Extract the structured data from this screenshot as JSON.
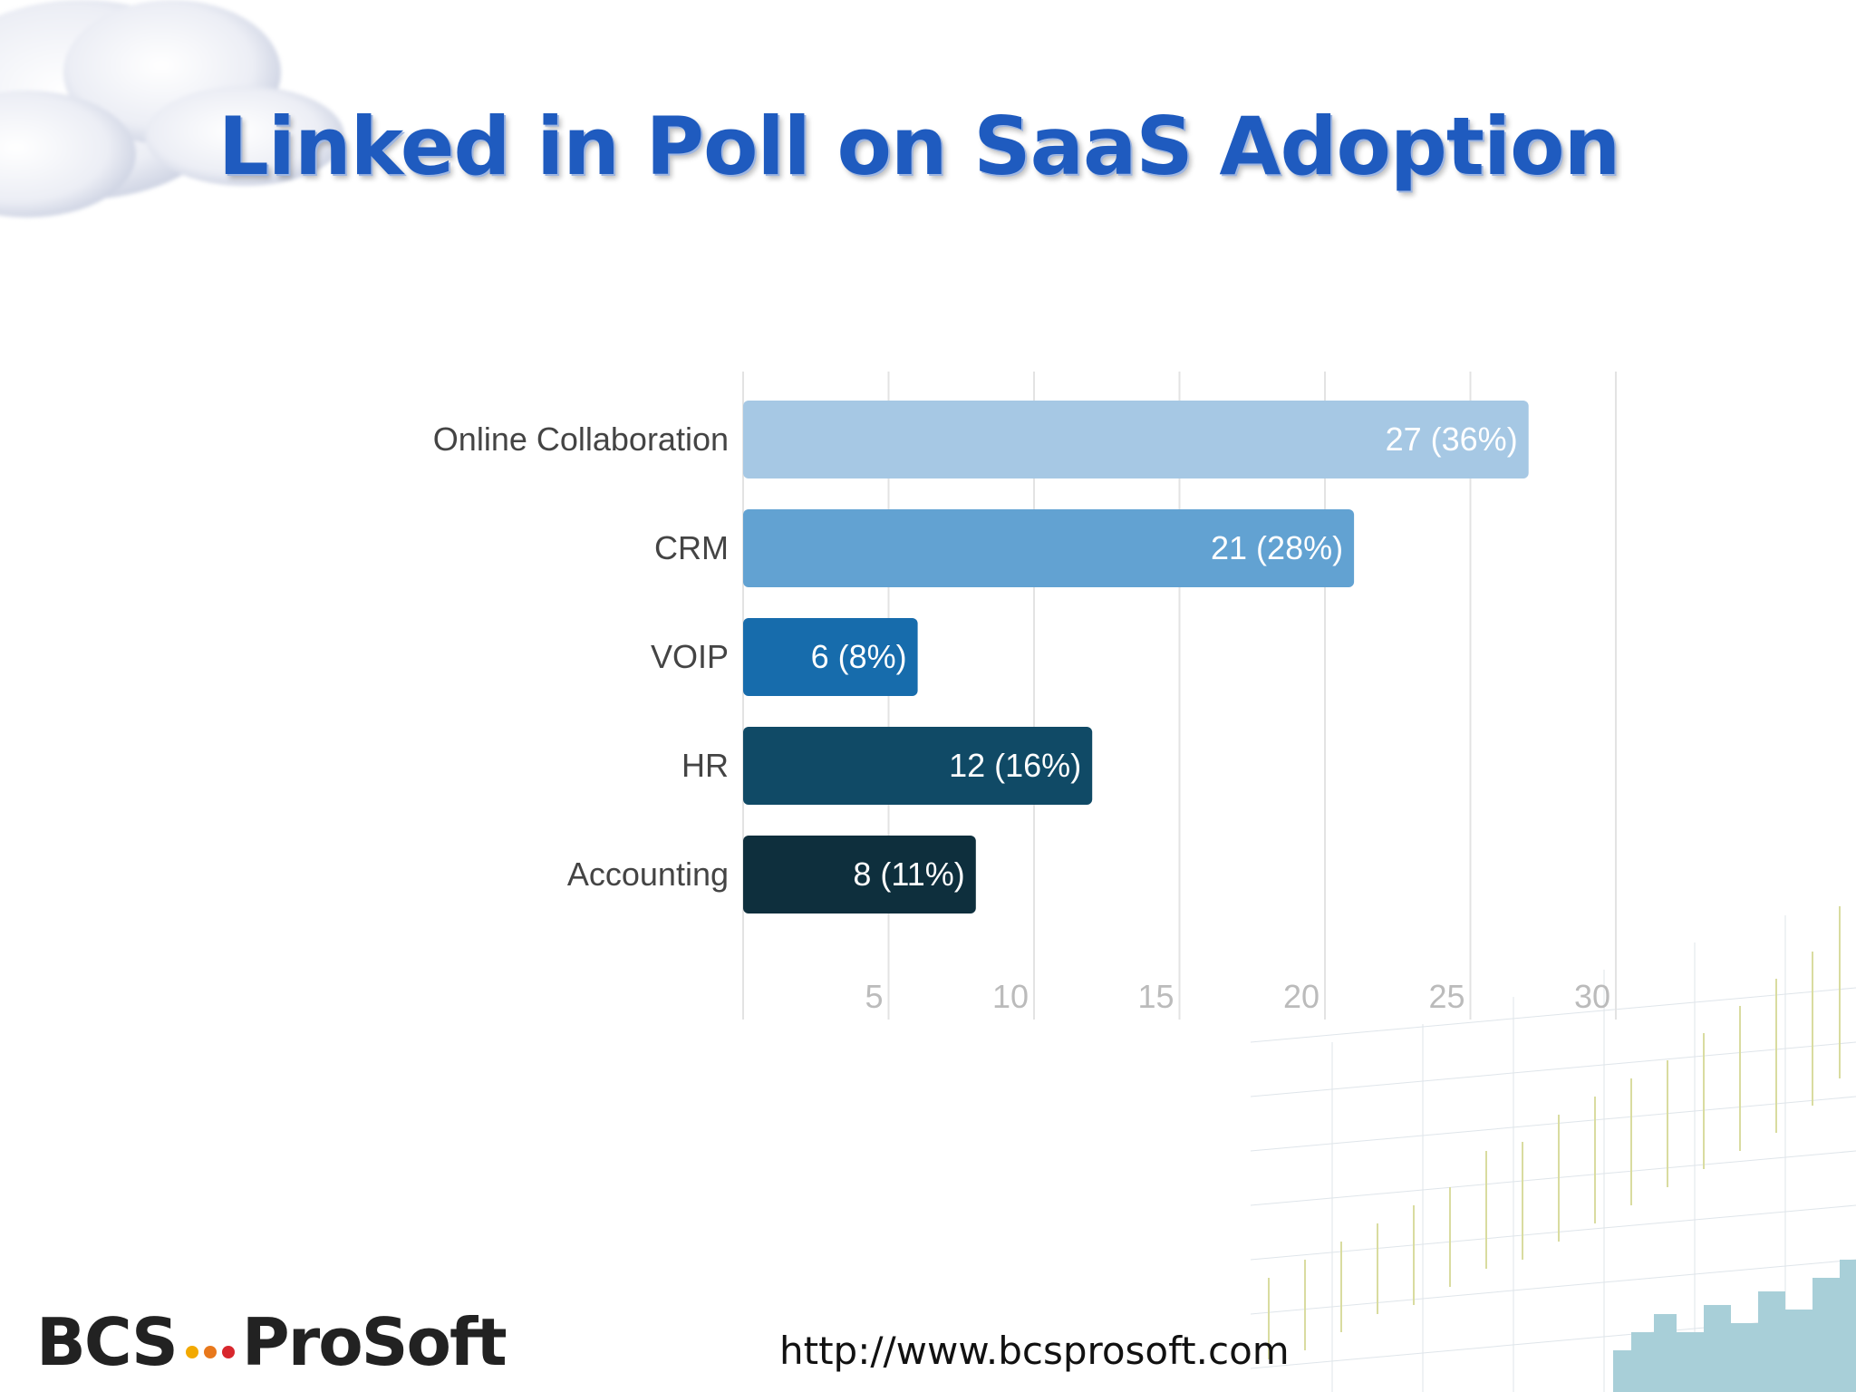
{
  "slide": {
    "title": "Linked in Poll on SaaS Adoption",
    "url": "http://www.bcsprosoft.com",
    "logo": {
      "left": "BCS",
      "right": "ProSoft",
      "dot_colors": [
        "#f2a900",
        "#e8781c",
        "#d8272d"
      ]
    }
  },
  "colors": {
    "title": "#1f5bbf",
    "grid": "#e3e3e3"
  },
  "chart_data": {
    "type": "bar",
    "orientation": "horizontal",
    "title": "",
    "xlabel": "",
    "ylabel": "",
    "xlim": [
      0,
      30
    ],
    "ticks": [
      5,
      10,
      15,
      20,
      25,
      30
    ],
    "grid": true,
    "categories": [
      "Online Collaboration",
      "CRM",
      "VOIP",
      "HR",
      "Accounting"
    ],
    "values": [
      27,
      21,
      6,
      12,
      8
    ],
    "labels": [
      "27 (36%)",
      "21 (28%)",
      "6 (8%)",
      "12 (16%)",
      "8 (11%)"
    ],
    "colors": [
      "#a6c8e4",
      "#62a2d2",
      "#176cac",
      "#104a66",
      "#0e2f3d"
    ]
  }
}
